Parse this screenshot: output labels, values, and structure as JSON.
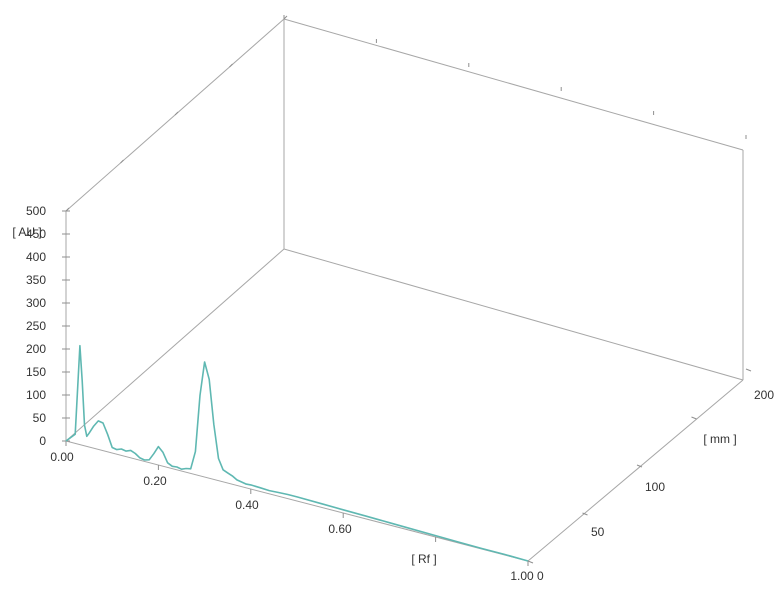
{
  "chart_data": {
    "type": "line",
    "title": "",
    "xlabel": "[ Rf ]",
    "ylabel": "[ AU ]",
    "zlabel": "[ mm ]",
    "xlim": [
      0.0,
      1.0
    ],
    "ylim": [
      0,
      500
    ],
    "zlim": [
      0,
      200
    ],
    "x_tick_labels": [
      "0.00",
      "0.20",
      "0.40",
      "0.60",
      "1.00"
    ],
    "y_tick_labels": [
      "0",
      "50",
      "100",
      "150",
      "200",
      "250",
      "300",
      "350",
      "400",
      "450",
      "500"
    ],
    "z_tick_labels": [
      "0",
      "50",
      "100",
      "200"
    ],
    "grid": false,
    "series": [
      {
        "color": "#5fb8b2",
        "z": 0,
        "x": [
          0.0,
          0.02,
          0.03,
          0.035,
          0.04,
          0.045,
          0.05,
          0.06,
          0.07,
          0.08,
          0.09,
          0.1,
          0.11,
          0.12,
          0.13,
          0.14,
          0.15,
          0.16,
          0.17,
          0.18,
          0.19,
          0.2,
          0.21,
          0.22,
          0.23,
          0.24,
          0.25,
          0.26,
          0.27,
          0.28,
          0.29,
          0.3,
          0.31,
          0.32,
          0.33,
          0.34,
          0.35,
          0.36,
          0.37,
          0.38,
          0.39,
          0.4,
          0.42,
          0.44,
          0.46,
          0.48,
          0.5,
          0.55,
          0.6,
          0.65,
          0.7,
          0.75,
          0.8,
          0.85,
          0.9,
          0.95,
          1.0
        ],
        "y": [
          0,
          20,
          215,
          140,
          45,
          22,
          30,
          48,
          62,
          60,
          38,
          12,
          10,
          14,
          12,
          16,
          12,
          5,
          3,
          6,
          22,
          40,
          30,
          10,
          5,
          6,
          4,
          8,
          10,
          50,
          175,
          250,
          215,
          120,
          48,
          26,
          22,
          18,
          12,
          10,
          8,
          9,
          8,
          7,
          8,
          9,
          9,
          8,
          7,
          6,
          5,
          4,
          3,
          2,
          1,
          1,
          0
        ]
      }
    ]
  }
}
